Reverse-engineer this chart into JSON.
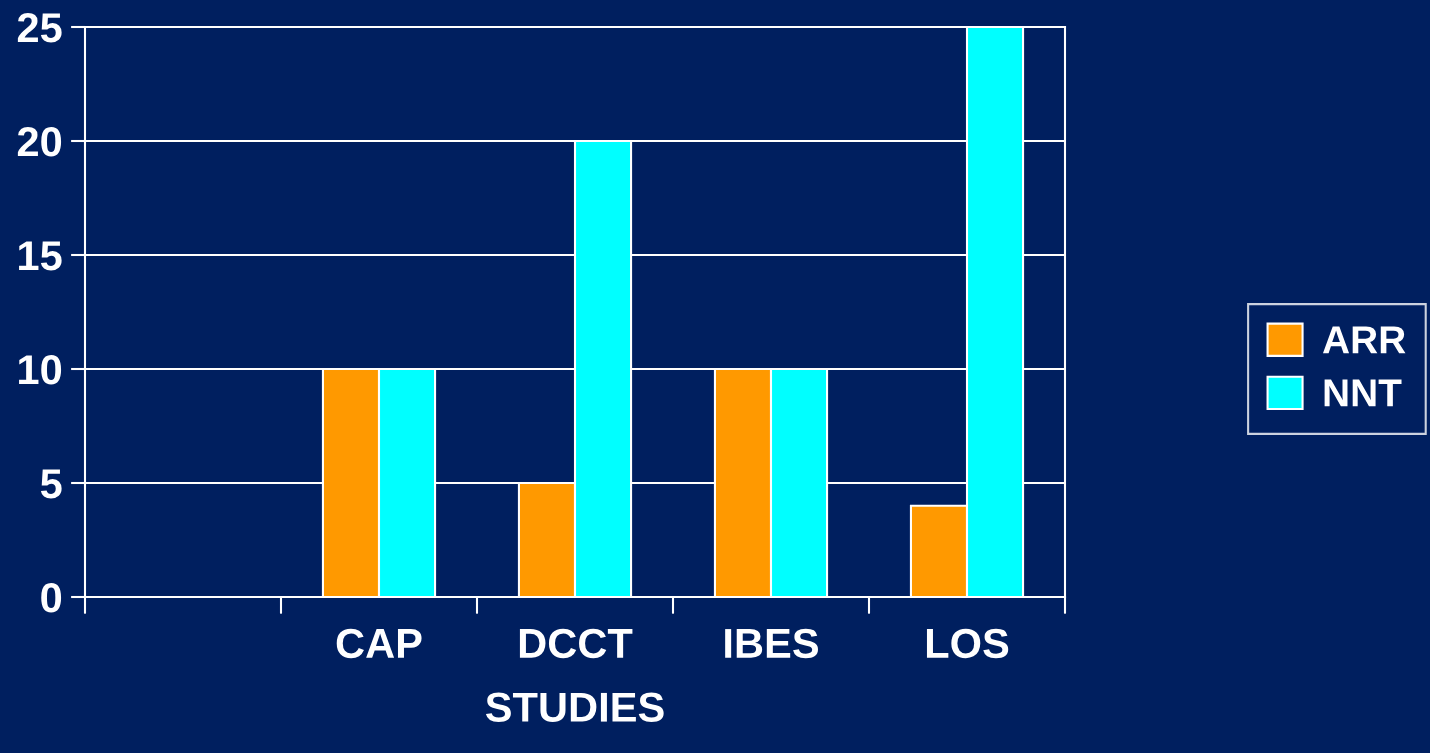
{
  "chart_data": {
    "type": "bar",
    "xlabel": "STUDIES",
    "categories": [
      null,
      "CAP",
      "DCCT",
      "IBES",
      "LOS"
    ],
    "series": [
      {
        "name": "ARR",
        "color": "#ff9900",
        "values": [
          null,
          10,
          5,
          10,
          4
        ]
      },
      {
        "name": "NNT",
        "color": "#00ffff",
        "values": [
          null,
          10,
          20,
          10,
          25
        ]
      }
    ],
    "ylim": [
      0,
      25
    ],
    "yticks": [
      0,
      5,
      10,
      15,
      20,
      25
    ],
    "grid": "y",
    "legend": "right"
  }
}
